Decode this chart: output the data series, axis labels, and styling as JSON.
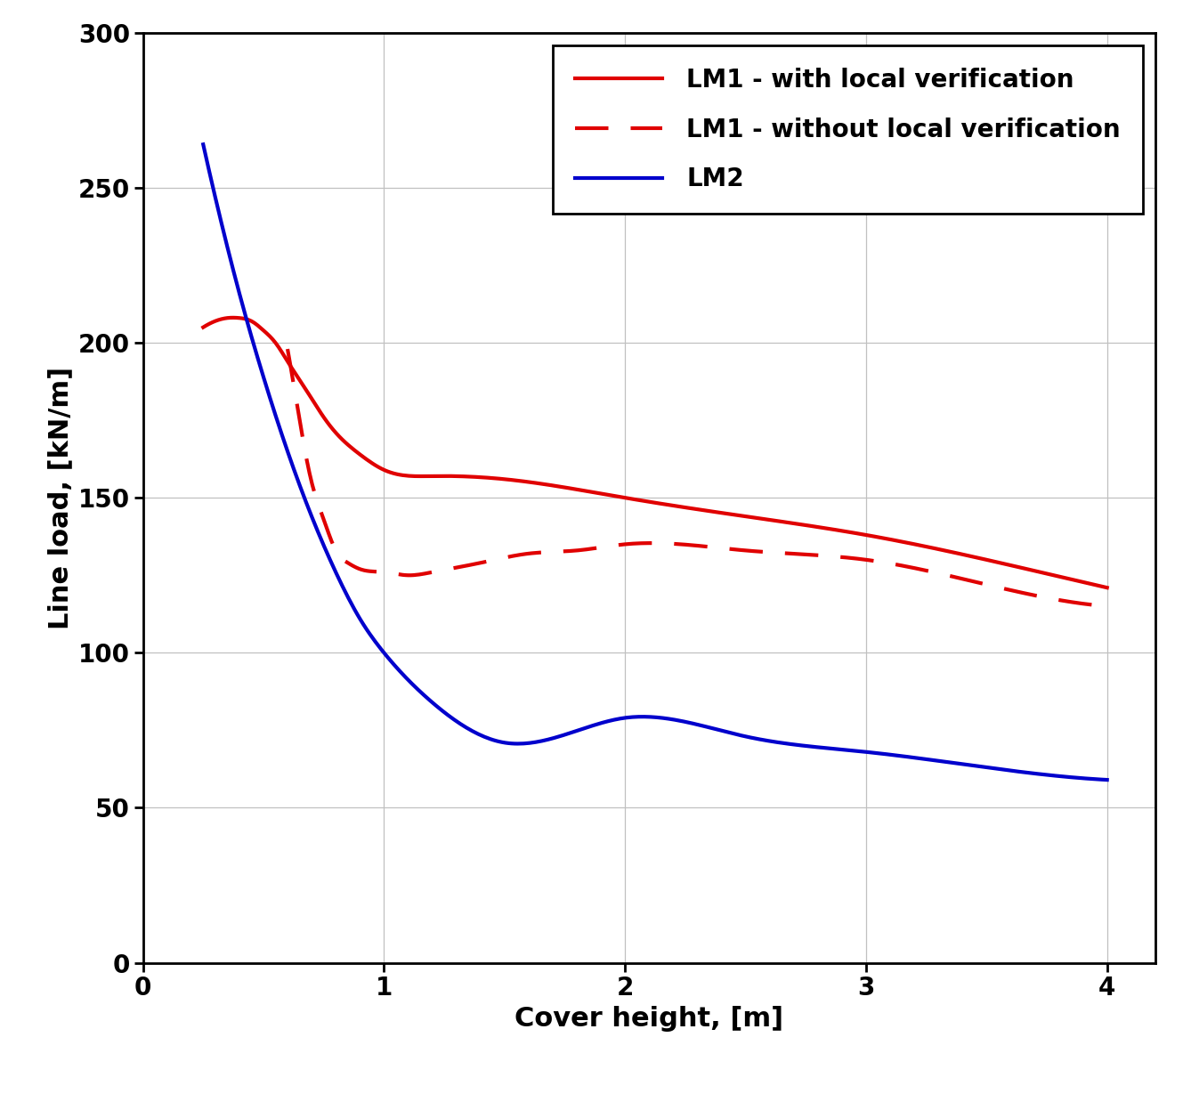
{
  "title": "",
  "xlabel": "Cover height, [m]",
  "ylabel": "Line load, [kN/m]",
  "xlim": [
    0,
    4.2
  ],
  "ylim": [
    0,
    300
  ],
  "xticks": [
    0,
    1,
    2,
    3,
    4
  ],
  "yticks": [
    0,
    50,
    100,
    150,
    200,
    250,
    300
  ],
  "lm1_with_x": [
    0.25,
    0.3,
    0.35,
    0.4,
    0.45,
    0.5,
    0.55,
    0.6,
    0.65,
    0.7,
    0.75,
    0.8,
    0.9,
    1.0,
    1.2,
    1.5,
    2.0,
    2.5,
    3.0,
    3.5,
    4.0
  ],
  "lm1_with_y": [
    205,
    207,
    208,
    208,
    207,
    204,
    200,
    194,
    188,
    182,
    176,
    171,
    164,
    159,
    157,
    156,
    150,
    144,
    138,
    130,
    121
  ],
  "lm1_without_x": [
    0.6,
    0.65,
    0.7,
    0.75,
    0.8,
    0.85,
    0.9,
    1.0,
    1.1,
    1.2,
    1.4,
    1.6,
    1.8,
    2.0,
    2.5,
    3.0,
    3.5,
    4.0
  ],
  "lm1_without_y": [
    198,
    175,
    155,
    143,
    133,
    129,
    127,
    126,
    125,
    126,
    129,
    132,
    133,
    135,
    133,
    130,
    122,
    115
  ],
  "lm2_x": [
    0.25,
    0.3,
    0.35,
    0.4,
    0.5,
    0.6,
    0.7,
    0.8,
    0.9,
    1.0,
    1.2,
    1.5,
    2.0,
    2.5,
    3.0,
    3.5,
    4.0
  ],
  "lm2_y": [
    264,
    247,
    231,
    216,
    189,
    165,
    144,
    126,
    111,
    100,
    84,
    71,
    79,
    73,
    68,
    63,
    59
  ],
  "lm1_with_color": "#e00000",
  "lm1_without_color": "#e00000",
  "lm2_color": "#0000cc",
  "line_width": 3.0,
  "legend_labels": [
    "LM1 - with local verification",
    "LM1 - without local verification",
    "LM2"
  ],
  "legend_loc": "upper right",
  "grid_color": "#c0c0c0",
  "background_color": "#ffffff",
  "font_size_labels": 22,
  "font_size_ticks": 20,
  "font_size_legend": 20
}
